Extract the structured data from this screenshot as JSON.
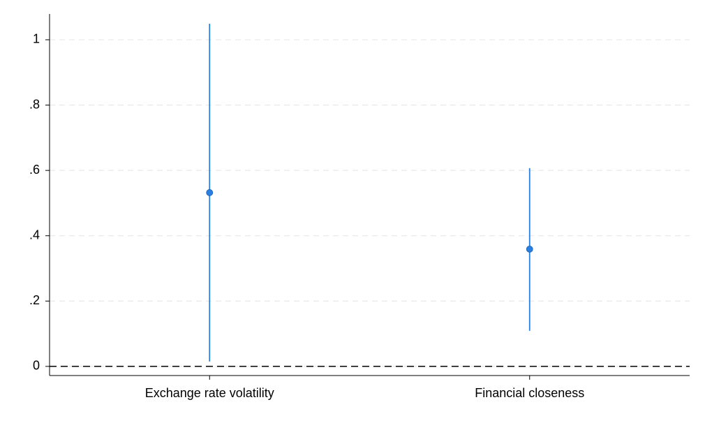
{
  "chart_data": {
    "type": "errorbar",
    "categories": [
      "Exchange rate volatility",
      "Financial closeness"
    ],
    "values": [
      0.532,
      0.359
    ],
    "lower": [
      0.015,
      0.109
    ],
    "upper": [
      1.049,
      0.607
    ],
    "color": "#2a7fe0",
    "ylim": [
      -0.028,
      1.079
    ],
    "yticks": [
      0,
      {
        "value": 0.2,
        "label": ".2"
      },
      {
        "value": 0.4,
        "label": ".4"
      },
      {
        "value": 0.6,
        "label": ".6"
      },
      {
        "value": 0.8,
        "label": ".8"
      },
      1
    ],
    "grid": true,
    "reference_line": 0
  }
}
